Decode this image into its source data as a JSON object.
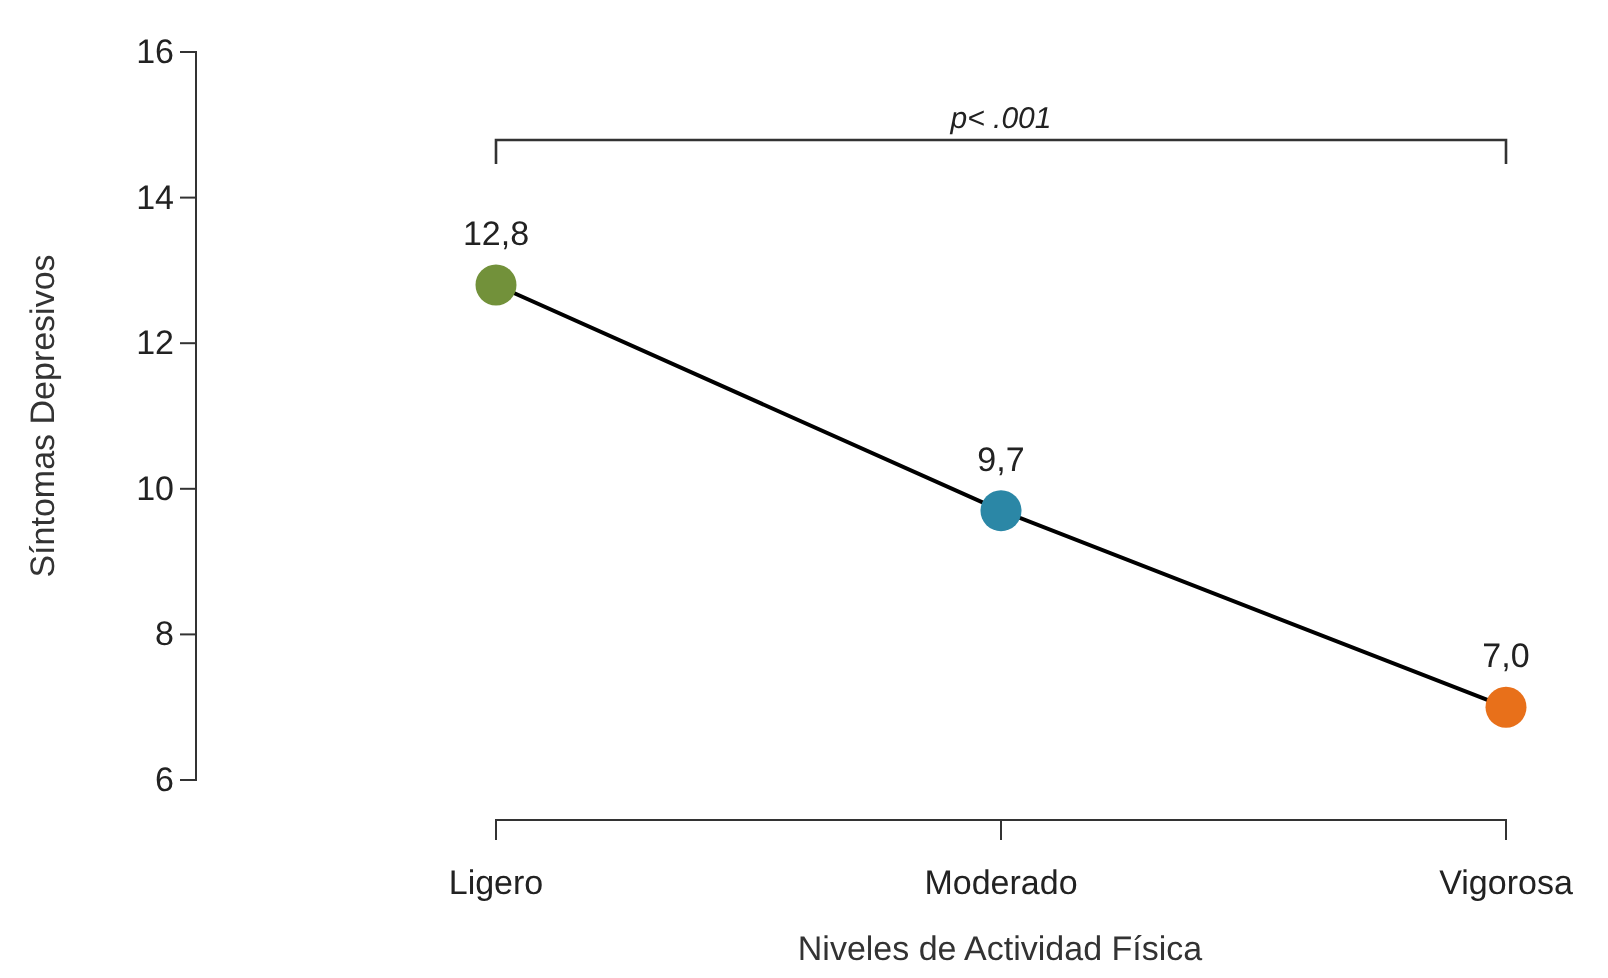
{
  "chart_data": {
    "type": "line",
    "xlabel": "Niveles de Actividad Física",
    "ylabel": "Síntomas Depresivos",
    "categories": [
      "Ligero",
      "Moderado",
      "Vigorosa"
    ],
    "values": [
      12.8,
      9.7,
      7.0
    ],
    "value_labels": [
      "12,8",
      "9,7",
      "7,0"
    ],
    "color": "#000000",
    "colors": [
      "#72913a",
      "#2b87a6",
      "#e8701a"
    ],
    "marker": "circle",
    "line_style": "solid",
    "ylim": [
      6,
      16
    ],
    "yticks": [
      6,
      8,
      10,
      12,
      14,
      16
    ],
    "grid": false,
    "annotations": [
      "p< .001"
    ]
  }
}
